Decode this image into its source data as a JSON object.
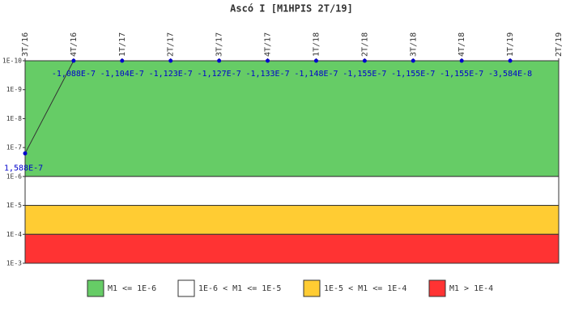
{
  "chart_data": {
    "type": "line",
    "title": "Ascó I [M1HPIS 2T/19]",
    "categories": [
      "3T/16",
      "4T/16",
      "1T/17",
      "2T/17",
      "3T/17",
      "4T/17",
      "1T/18",
      "2T/18",
      "3T/18",
      "4T/18",
      "1T/19",
      "2T/19"
    ],
    "values": [
      1.588e-07,
      -1.088e-07,
      -1.104e-07,
      -1.123e-07,
      -1.127e-07,
      -1.133e-07,
      -1.148e-07,
      -1.155e-07,
      -1.155e-07,
      -1.155e-07,
      -3.584e-08,
      null
    ],
    "value_labels": [
      "1,588E-7",
      "-1,088E-7",
      "-1,104E-7",
      "-1,123E-7",
      "-1,127E-7",
      "-1,133E-7",
      "-1,148E-7",
      "-1,155E-7",
      "-1,155E-7",
      "-1,155E-7",
      "-3,584E-8",
      null
    ],
    "color": "#0000cc",
    "line_color": "#333333",
    "log_scale": true,
    "y_inverted": true,
    "ylim": [
      1e-10,
      0.001
    ],
    "yticks": [
      {
        "value": 1e-10,
        "label": "1E-10"
      },
      {
        "value": 1e-09,
        "label": "1E-9"
      },
      {
        "value": 1e-08,
        "label": "1E-8"
      },
      {
        "value": 1e-07,
        "label": "1E-7"
      },
      {
        "value": 1e-06,
        "label": "1E-6"
      },
      {
        "value": 1e-05,
        "label": "1E-5"
      },
      {
        "value": 0.0001,
        "label": "1E-4"
      },
      {
        "value": 0.001,
        "label": "1E-3"
      }
    ],
    "bands": [
      {
        "name": "M1 <= 1E-6",
        "color": "#66cc66",
        "from": 1e-10,
        "to": 1e-06
      },
      {
        "name": "1E-6 < M1 <= 1E-5",
        "color": "#ffffff",
        "from": 1e-06,
        "to": 1e-05
      },
      {
        "name": "1E-5 < M1 <= 1E-4",
        "color": "#ffcc33",
        "from": 1e-05,
        "to": 0.0001
      },
      {
        "name": "M1 > 1E-4",
        "color": "#ff3333",
        "from": 0.0001,
        "to": 0.001
      }
    ]
  }
}
